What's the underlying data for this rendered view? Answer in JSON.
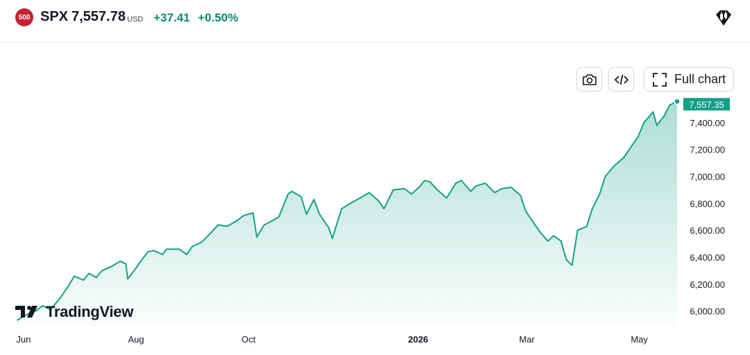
{
  "header": {
    "badge": "500",
    "symbol": "SPX",
    "price": "7,557.78",
    "currency": "USD",
    "change": "+37.41",
    "change_pct": "+0.50%"
  },
  "toolbar": {
    "fullchart_label": "Full chart"
  },
  "watermark": "TradingView",
  "colors": {
    "line": "#14a085",
    "positive": "#0b8a6c",
    "badge": "#c52233"
  },
  "chart_data": {
    "type": "area",
    "series": [
      {
        "last_value_label": "7,557.35",
        "points": [
          [
            "2025-06-02",
            5930
          ],
          [
            "2025-06-05",
            5960
          ],
          [
            "2025-06-09",
            5985
          ],
          [
            "2025-06-12",
            6000
          ],
          [
            "2025-06-16",
            6040
          ],
          [
            "2025-06-20",
            6010
          ],
          [
            "2025-06-25",
            6090
          ],
          [
            "2025-06-30",
            6190
          ],
          [
            "2025-07-03",
            6260
          ],
          [
            "2025-07-08",
            6230
          ],
          [
            "2025-07-11",
            6280
          ],
          [
            "2025-07-15",
            6250
          ],
          [
            "2025-07-18",
            6300
          ],
          [
            "2025-07-23",
            6330
          ],
          [
            "2025-07-28",
            6370
          ],
          [
            "2025-07-31",
            6350
          ],
          [
            "2025-08-01",
            6240
          ],
          [
            "2025-08-05",
            6310
          ],
          [
            "2025-08-08",
            6370
          ],
          [
            "2025-08-12",
            6440
          ],
          [
            "2025-08-15",
            6450
          ],
          [
            "2025-08-20",
            6420
          ],
          [
            "2025-08-22",
            6460
          ],
          [
            "2025-08-26",
            6460
          ],
          [
            "2025-08-29",
            6460
          ],
          [
            "2025-09-02",
            6420
          ],
          [
            "2025-09-05",
            6480
          ],
          [
            "2025-09-10",
            6510
          ],
          [
            "2025-09-15",
            6580
          ],
          [
            "2025-09-19",
            6640
          ],
          [
            "2025-09-24",
            6630
          ],
          [
            "2025-09-29",
            6670
          ],
          [
            "2025-10-03",
            6710
          ],
          [
            "2025-10-08",
            6730
          ],
          [
            "2025-10-10",
            6550
          ],
          [
            "2025-10-14",
            6640
          ],
          [
            "2025-10-17",
            6660
          ],
          [
            "2025-10-22",
            6700
          ],
          [
            "2025-10-27",
            6870
          ],
          [
            "2025-10-29",
            6890
          ],
          [
            "2025-11-03",
            6850
          ],
          [
            "2025-11-06",
            6720
          ],
          [
            "2025-11-10",
            6830
          ],
          [
            "2025-11-13",
            6720
          ],
          [
            "2025-11-18",
            6620
          ],
          [
            "2025-11-20",
            6540
          ],
          [
            "2025-11-25",
            6760
          ],
          [
            "2025-12-01",
            6810
          ],
          [
            "2025-12-05",
            6840
          ],
          [
            "2025-12-10",
            6880
          ],
          [
            "2025-12-15",
            6820
          ],
          [
            "2025-12-18",
            6760
          ],
          [
            "2025-12-23",
            6900
          ],
          [
            "2025-12-29",
            6910
          ],
          [
            "2026-01-02",
            6870
          ],
          [
            "2026-01-06",
            6920
          ],
          [
            "2026-01-09",
            6970
          ],
          [
            "2026-01-12",
            6960
          ],
          [
            "2026-01-16",
            6900
          ],
          [
            "2026-01-21",
            6840
          ],
          [
            "2026-01-26",
            6950
          ],
          [
            "2026-01-29",
            6970
          ],
          [
            "2026-02-03",
            6890
          ],
          [
            "2026-02-06",
            6930
          ],
          [
            "2026-02-11",
            6950
          ],
          [
            "2026-02-16",
            6880
          ],
          [
            "2026-02-20",
            6910
          ],
          [
            "2026-02-25",
            6920
          ],
          [
            "2026-03-02",
            6860
          ],
          [
            "2026-03-05",
            6740
          ],
          [
            "2026-03-09",
            6660
          ],
          [
            "2026-03-13",
            6580
          ],
          [
            "2026-03-17",
            6520
          ],
          [
            "2026-03-20",
            6560
          ],
          [
            "2026-03-24",
            6520
          ],
          [
            "2026-03-27",
            6380
          ],
          [
            "2026-03-30",
            6340
          ],
          [
            "2026-04-02",
            6600
          ],
          [
            "2026-04-07",
            6630
          ],
          [
            "2026-04-10",
            6760
          ],
          [
            "2026-04-14",
            6870
          ],
          [
            "2026-04-17",
            7000
          ],
          [
            "2026-04-22",
            7080
          ],
          [
            "2026-04-27",
            7140
          ],
          [
            "2026-04-30",
            7200
          ],
          [
            "2026-05-05",
            7300
          ],
          [
            "2026-05-08",
            7400
          ],
          [
            "2026-05-13",
            7480
          ],
          [
            "2026-05-15",
            7380
          ],
          [
            "2026-05-19",
            7450
          ],
          [
            "2026-05-22",
            7530
          ],
          [
            "2026-05-26",
            7557.35
          ]
        ]
      }
    ],
    "x_ticks": [
      {
        "label": "Jun",
        "date": "2025-06-01",
        "bold": false
      },
      {
        "label": "Aug",
        "date": "2025-08-01",
        "bold": false
      },
      {
        "label": "Oct",
        "date": "2025-10-01",
        "bold": false
      },
      {
        "label": "2026",
        "date": "2026-01-01",
        "bold": true
      },
      {
        "label": "Mar",
        "date": "2026-03-01",
        "bold": false
      },
      {
        "label": "May",
        "date": "2026-05-01",
        "bold": false
      }
    ],
    "y_ticks": [
      6000,
      6200,
      6400,
      6600,
      6800,
      7000,
      7200,
      7400
    ],
    "y_tick_labels": [
      "6,000.00",
      "6,200.00",
      "6,400.00",
      "6,600.00",
      "6,800.00",
      "7,000.00",
      "7,200.00",
      "7,400.00"
    ],
    "xlim": [
      "2025-06-01",
      "2026-05-26"
    ],
    "ylim": [
      5890,
      7590
    ],
    "grid": false
  }
}
